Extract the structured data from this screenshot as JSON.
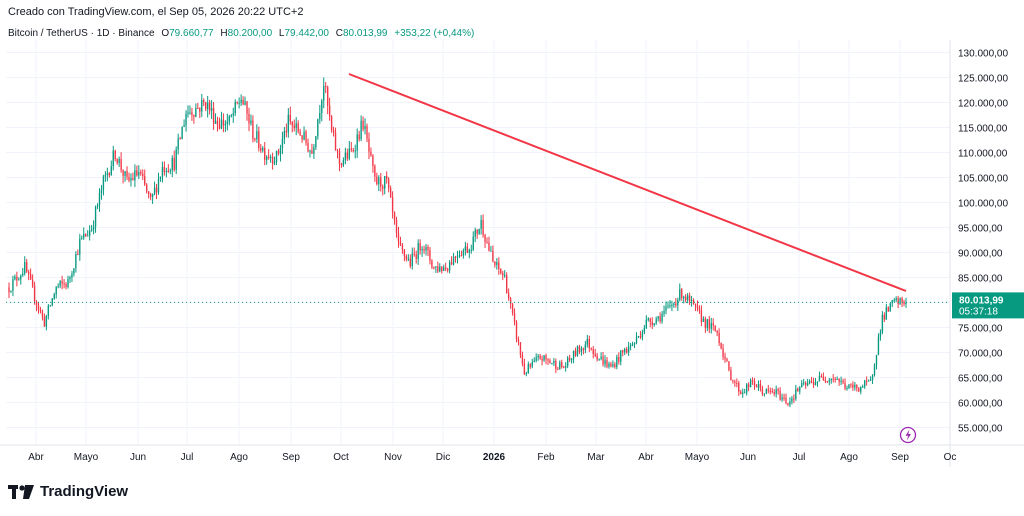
{
  "caption": "Creado con TradingView.com, el Sep 05, 2026 20:22 UTC+2",
  "symbol": {
    "name": "Bitcoin / TetherUS · 1D · Binance",
    "open_label": "O",
    "open": "79.660,77",
    "high_label": "H",
    "high": "80.200,00",
    "low_label": "L",
    "low": "79.442,00",
    "close_label": "C",
    "close": "80.013,99",
    "change": "+353,22 (+0,44%)"
  },
  "price_tag": {
    "price": "80.013,99",
    "countdown": "05:37:18"
  },
  "brand": {
    "name": "TradingView"
  },
  "icon": "lightning-icon",
  "colors": {
    "up": "#089981",
    "down": "#f23645",
    "trendline": "#f23645",
    "price_tag": "#089981"
  },
  "chart_data": {
    "type": "candlestick",
    "x_tick_labels": [
      "Abr",
      "Mayo",
      "Jun",
      "Jul",
      "Ago",
      "Sep",
      "Oct",
      "Nov",
      "Dic",
      "2026",
      "Feb",
      "Mar",
      "Abr",
      "Mayo",
      "Jun",
      "Jul",
      "Ago",
      "Sep",
      "Oc"
    ],
    "y_ticks": [
      55000,
      60000,
      65000,
      70000,
      75000,
      80000,
      85000,
      90000,
      95000,
      100000,
      105000,
      110000,
      115000,
      120000,
      125000,
      130000
    ],
    "y_tick_labels": [
      "55.000,00",
      "60.000,00",
      "65.000,00",
      "70.000,00",
      "75.000,00",
      "80.000,00",
      "85.000,00",
      "90.000,00",
      "95.000,00",
      "100.000,00",
      "105.000,00",
      "110.000,00",
      "115.000,00",
      "120.000,00",
      "125.000,00",
      "130.000,00"
    ],
    "ylim": [
      51500,
      132500
    ],
    "last_price": 80013.99,
    "price_path": [
      [
        0,
        83000
      ],
      [
        8,
        87000
      ],
      [
        14,
        80000
      ],
      [
        18,
        76000
      ],
      [
        24,
        83000
      ],
      [
        30,
        84000
      ],
      [
        36,
        92000
      ],
      [
        42,
        95000
      ],
      [
        48,
        104000
      ],
      [
        54,
        110000
      ],
      [
        60,
        104000
      ],
      [
        66,
        106000
      ],
      [
        72,
        100000
      ],
      [
        78,
        107000
      ],
      [
        84,
        108000
      ],
      [
        90,
        118000
      ],
      [
        96,
        119000
      ],
      [
        100,
        120000
      ],
      [
        106,
        116000
      ],
      [
        112,
        116000
      ],
      [
        118,
        121000
      ],
      [
        124,
        114000
      ],
      [
        130,
        110000
      ],
      [
        136,
        109000
      ],
      [
        142,
        116000
      ],
      [
        148,
        114000
      ],
      [
        154,
        110000
      ],
      [
        160,
        124000
      ],
      [
        164,
        114000
      ],
      [
        168,
        108000
      ],
      [
        174,
        110000
      ],
      [
        180,
        116000
      ],
      [
        186,
        104000
      ],
      [
        192,
        104000
      ],
      [
        198,
        91000
      ],
      [
        204,
        88000
      ],
      [
        210,
        92000
      ],
      [
        216,
        87000
      ],
      [
        222,
        87000
      ],
      [
        228,
        90000
      ],
      [
        234,
        91000
      ],
      [
        240,
        96000
      ],
      [
        246,
        88000
      ],
      [
        252,
        85000
      ],
      [
        256,
        77000
      ],
      [
        262,
        66000
      ],
      [
        270,
        69000
      ],
      [
        276,
        68000
      ],
      [
        282,
        67000
      ],
      [
        288,
        70000
      ],
      [
        294,
        72000
      ],
      [
        300,
        69000
      ],
      [
        306,
        67000
      ],
      [
        312,
        70000
      ],
      [
        318,
        72000
      ],
      [
        324,
        76000
      ],
      [
        330,
        77000
      ],
      [
        336,
        79000
      ],
      [
        342,
        82000
      ],
      [
        348,
        79000
      ],
      [
        354,
        76000
      ],
      [
        360,
        74000
      ],
      [
        366,
        66000
      ],
      [
        372,
        62000
      ],
      [
        378,
        64000
      ],
      [
        384,
        62000
      ],
      [
        390,
        62000
      ],
      [
        396,
        60000
      ],
      [
        402,
        63000
      ],
      [
        408,
        64000
      ],
      [
        414,
        65000
      ],
      [
        420,
        65000
      ],
      [
        426,
        63000
      ],
      [
        432,
        63000
      ],
      [
        438,
        64000
      ],
      [
        444,
        77000
      ],
      [
        450,
        80000
      ],
      [
        456,
        80013.99
      ]
    ],
    "trendline": {
      "start": {
        "x": "Oct 2025",
        "y": 125700
      },
      "end": {
        "x": "Sep 2026",
        "y": 82300
      }
    },
    "grid": true,
    "legend": "none"
  }
}
